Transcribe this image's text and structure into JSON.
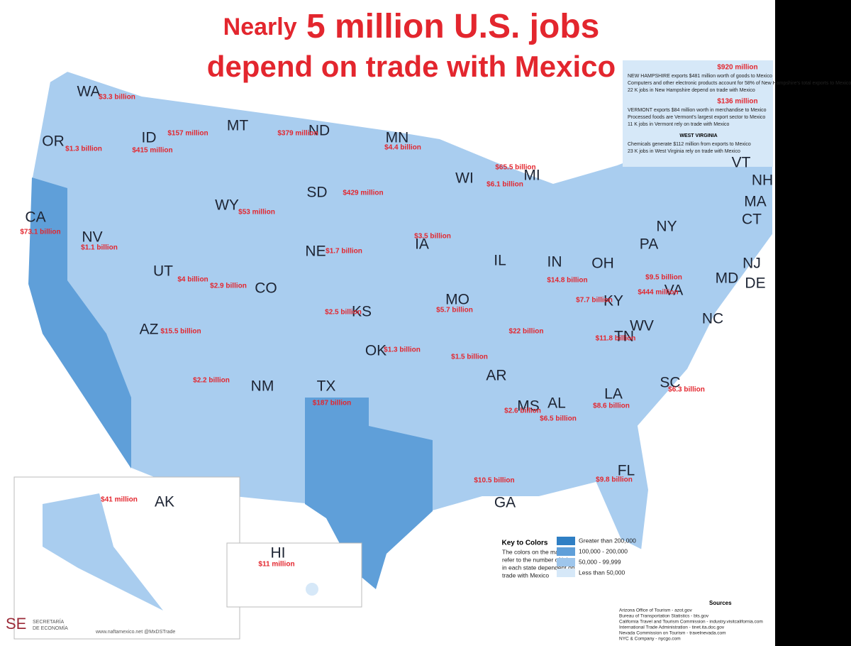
{
  "header": {
    "title_lead": "Nearly",
    "title_big": "5 million U.S. jobs",
    "title_line2": "depend on trade with Mexico"
  },
  "states": [
    {
      "abbr": "WA",
      "value": "$3.3 billion"
    },
    {
      "abbr": "OR",
      "value": "$1.3 billion"
    },
    {
      "abbr": "ID",
      "value": "$415 million"
    },
    {
      "abbr": "MT",
      "value": "$157 million"
    },
    {
      "abbr": "ND",
      "value": "$379 million"
    },
    {
      "abbr": "MN",
      "value": "$4.4 billion"
    },
    {
      "abbr": "WI",
      "value": "$6.1 billion"
    },
    {
      "abbr": "MI",
      "value": "$65.5 billion"
    },
    {
      "abbr": "SD",
      "value": "$429 million"
    },
    {
      "abbr": "WY",
      "value": "$53 million"
    },
    {
      "abbr": "CA",
      "value": "$73.1 billion"
    },
    {
      "abbr": "NV",
      "value": "$1.1 billion"
    },
    {
      "abbr": "NE",
      "value": "$1.7 billion"
    },
    {
      "abbr": "IA",
      "value": "$3.5 billion"
    },
    {
      "abbr": "IL",
      "value": "$22 billion"
    },
    {
      "abbr": "IN",
      "value": "$14.8 billion"
    },
    {
      "abbr": "OH"
    },
    {
      "abbr": "UT",
      "value": "$4 billion"
    },
    {
      "abbr": "CO",
      "value": "$2.9 billion"
    },
    {
      "abbr": "KS",
      "value": "$2.5 billion"
    },
    {
      "abbr": "MO",
      "value": "$5.7 billion"
    },
    {
      "abbr": "KY",
      "value": "$7.7 billion"
    },
    {
      "abbr": "PA",
      "value": "$9.5 billion"
    },
    {
      "abbr": "NY"
    },
    {
      "abbr": "AZ",
      "value": "$15.5 billion"
    },
    {
      "abbr": "NM",
      "value": "$2.2 billion"
    },
    {
      "abbr": "OK",
      "value": "$1.3 billion"
    },
    {
      "abbr": "TX",
      "value": "$187 billion"
    },
    {
      "abbr": "AR",
      "value": "$1.5 billion"
    },
    {
      "abbr": "TN",
      "value": "$11.8 billion"
    },
    {
      "abbr": "NC"
    },
    {
      "abbr": "SC",
      "value": "$6.3 billion"
    },
    {
      "abbr": "MS",
      "value": "$2.6 billion"
    },
    {
      "abbr": "AL",
      "value": "$6.5 billion"
    },
    {
      "abbr": "LA",
      "value": "$8.6 billion"
    },
    {
      "abbr": "GA",
      "value": "$10.5 billion"
    },
    {
      "abbr": "FL",
      "value": "$9.8 billion"
    },
    {
      "abbr": "WV"
    },
    {
      "abbr": "VA",
      "value": "$444 million"
    },
    {
      "abbr": "MD"
    },
    {
      "abbr": "DE"
    },
    {
      "abbr": "NJ"
    },
    {
      "abbr": "CT"
    },
    {
      "abbr": "MA"
    },
    {
      "abbr": "NH"
    },
    {
      "abbr": "VT"
    },
    {
      "abbr": "AK",
      "value": "$41 million"
    },
    {
      "abbr": "HI",
      "value": "$11 million"
    }
  ],
  "side_panel": [
    {
      "value": "$920 million",
      "lines": [
        "NEW HAMPSHIRE exports $481 million worth of goods to Mexico",
        "Computers and other electronic products account for 58% of New Hampshire's total exports to Mexico",
        "22 K jobs in New Hampshire depend on trade with Mexico"
      ]
    },
    {
      "value": "$136 million",
      "lines": [
        "VERMONT exports $84 million worth in merchandise to Mexico",
        "Processed foods are Vermont's largest export sector to Mexico",
        "11 K jobs in Vermont rely on trade with Mexico"
      ]
    },
    {
      "heading": "WEST VIRGINIA",
      "lines": [
        "Chemicals generate $112 million from exports to Mexico",
        "23 K jobs in West Virginia rely on trade with Mexico"
      ]
    }
  ],
  "key": {
    "title": "Key to Colors",
    "text": [
      "The colors on the map",
      "refer to the number of jobs",
      "in each state dependent on",
      "trade with Mexico"
    ],
    "items": [
      {
        "label": "Greater than 200,000",
        "color": "#2f7fc4"
      },
      {
        "label": "100,000 - 200,000",
        "color": "#5f9fd9"
      },
      {
        "label": "50,000 - 99,999",
        "color": "#9ec6ec"
      },
      {
        "label": "Less than 50,000",
        "color": "#d6e8f8"
      }
    ]
  },
  "sources": {
    "title": "Sources",
    "lines": [
      "Arizona Office of Tourism - azot.gov",
      "Bureau of Transportation Statistics - bts.gov",
      "California Travel and Tourism Commission - industry.visitcalifornia.com",
      "International Trade Administration - tinet.ita.doc.gov",
      "Nevada Commission on Tourism - travelnevada.com",
      "NYC & Company - nycgo.com"
    ]
  },
  "footer": {
    "logo": "SE",
    "agency": [
      "SECRETARÍA",
      "DE ECONOMÍA"
    ],
    "links": "www.naftamexico.net   @MxDSTrade"
  }
}
